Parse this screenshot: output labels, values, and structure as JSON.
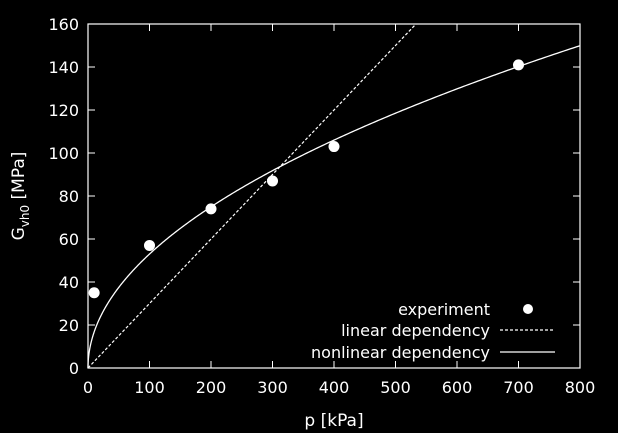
{
  "chart_data": {
    "type": "scatter",
    "xlabel": "p [kPa]",
    "ylabel_main": "G",
    "ylabel_sub": "vh0",
    "ylabel_unit": " [MPa]",
    "xlim": [
      0,
      800
    ],
    "ylim": [
      0,
      160
    ],
    "x_ticks": [
      0,
      100,
      200,
      300,
      400,
      500,
      600,
      700,
      800
    ],
    "y_ticks": [
      0,
      20,
      40,
      60,
      80,
      100,
      120,
      140,
      160
    ],
    "grid": false,
    "legend_position": "bottom-right",
    "series": [
      {
        "name": "experiment",
        "kind": "points",
        "color": "#ffffff",
        "x": [
          10,
          100,
          200,
          300,
          400,
          700
        ],
        "y": [
          35,
          57,
          74,
          87,
          103,
          141
        ]
      },
      {
        "name": "linear dependency",
        "kind": "dashed-line",
        "color": "#ffffff",
        "slope": 0.3
      },
      {
        "name": "nonlinear dependency",
        "kind": "solid-line",
        "color": "#ffffff",
        "coefficient": 5.3,
        "exponent": 0.5
      }
    ]
  }
}
